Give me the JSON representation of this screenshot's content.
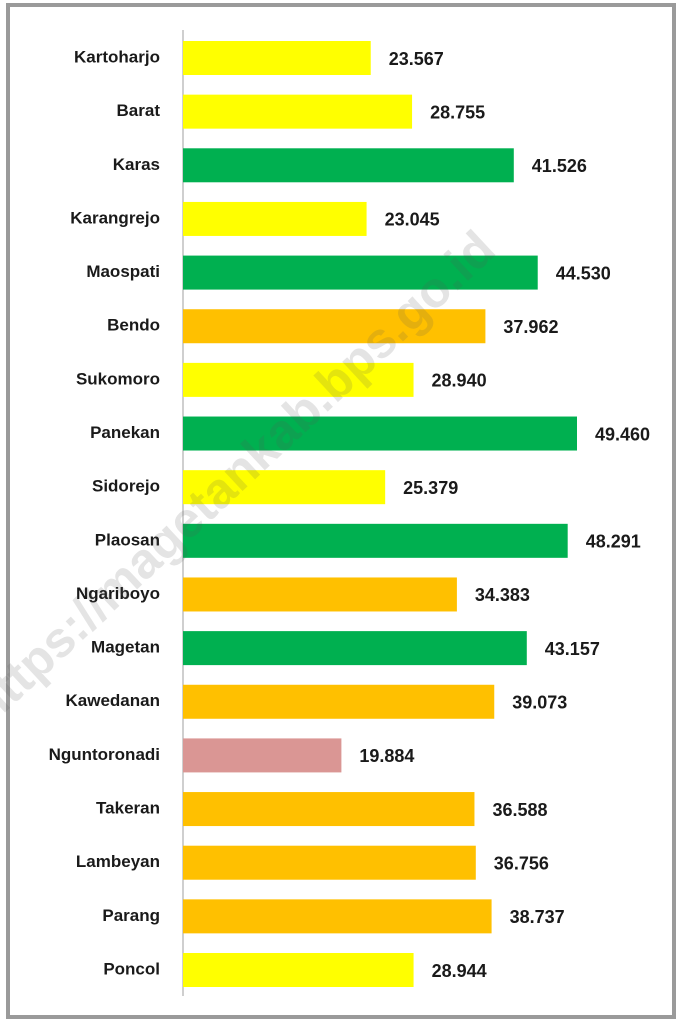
{
  "chart_data": {
    "type": "hbar",
    "watermark": "https://magetankab.bps.go.id",
    "categories": [
      "Kartoharjo",
      "Barat",
      "Karas",
      "Karangrejo",
      "Maospati",
      "Bendo",
      "Sukomoro",
      "Panekan",
      "Sidorejo",
      "Plaosan",
      "Ngariboyo",
      "Magetan",
      "Kawedanan",
      "Nguntoronadi",
      "Takeran",
      "Lambeyan",
      "Parang",
      "Poncol"
    ],
    "values": [
      23567,
      28755,
      41526,
      23045,
      44530,
      37962,
      28940,
      49460,
      25379,
      48291,
      34383,
      43157,
      39073,
      19884,
      36588,
      36756,
      38737,
      28944
    ],
    "value_labels": [
      "23.567",
      "28.755",
      "41.526",
      "23.045",
      "44.530",
      "37.962",
      "28.940",
      "49.460",
      "25.379",
      "48.291",
      "34.383",
      "43.157",
      "39.073",
      "19.884",
      "36.588",
      "36.756",
      "38.737",
      "28.944"
    ],
    "colors": [
      "#ffff00",
      "#ffff00",
      "#00b050",
      "#ffff00",
      "#00b050",
      "#ffc000",
      "#ffff00",
      "#00b050",
      "#ffff00",
      "#00b050",
      "#ffc000",
      "#00b050",
      "#ffc000",
      "#da9694",
      "#ffc000",
      "#ffc000",
      "#ffc000",
      "#ffff00"
    ]
  }
}
